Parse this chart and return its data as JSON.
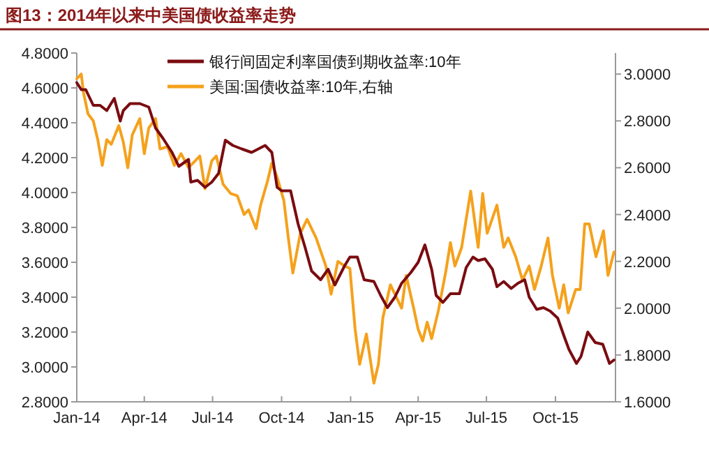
{
  "chart_data": {
    "type": "line",
    "title": "图13：2014年以来中美国债收益率走势",
    "legend": "top",
    "xlim": [
      "2014-01-01",
      "2015-12-20"
    ],
    "xticks": [
      {
        "value": "2014-01-01",
        "label": "Jan-14"
      },
      {
        "value": "2014-04-01",
        "label": "Apr-14"
      },
      {
        "value": "2014-07-01",
        "label": "Jul-14"
      },
      {
        "value": "2014-10-01",
        "label": "Oct-14"
      },
      {
        "value": "2015-01-01",
        "label": "Jan-15"
      },
      {
        "value": "2015-04-01",
        "label": "Apr-15"
      },
      {
        "value": "2015-07-01",
        "label": "Jul-15"
      },
      {
        "value": "2015-10-01",
        "label": "Oct-15"
      }
    ],
    "ylim": [
      2.8,
      4.8
    ],
    "yticks": [
      {
        "value": 2.8,
        "label": "2.8000"
      },
      {
        "value": 3.0,
        "label": "3.0000"
      },
      {
        "value": 3.2,
        "label": "3.2000"
      },
      {
        "value": 3.4,
        "label": "3.4000"
      },
      {
        "value": 3.6,
        "label": "3.6000"
      },
      {
        "value": 3.8,
        "label": "3.8000"
      },
      {
        "value": 4.0,
        "label": "4.0000"
      },
      {
        "value": 4.2,
        "label": "4.2000"
      },
      {
        "value": 4.4,
        "label": "4.4000"
      },
      {
        "value": 4.6,
        "label": "4.6000"
      },
      {
        "value": 4.8,
        "label": "4.8000"
      }
    ],
    "y2lim": [
      1.6,
      3.09
    ],
    "y2ticks": [
      {
        "value": 1.6,
        "label": "1.6000"
      },
      {
        "value": 1.8,
        "label": "1.8000"
      },
      {
        "value": 2.0,
        "label": "2.0000"
      },
      {
        "value": 2.2,
        "label": "2.2000"
      },
      {
        "value": 2.4,
        "label": "2.4000"
      },
      {
        "value": 2.6,
        "label": "2.6000"
      },
      {
        "value": 2.8,
        "label": "2.8000"
      },
      {
        "value": 3.0,
        "label": "3.0000"
      }
    ],
    "series": [
      {
        "name": "银行间固定利率国债到期收益率:10年",
        "color": "#7a0c10",
        "x": [
          "2014-01-01",
          "2014-01-07",
          "2014-01-13",
          "2014-01-23",
          "2014-02-01",
          "2014-02-10",
          "2014-02-20",
          "2014-02-28",
          "2014-03-04",
          "2014-03-13",
          "2014-03-26",
          "2014-04-07",
          "2014-04-16",
          "2014-04-26",
          "2014-05-08",
          "2014-05-17",
          "2014-05-30",
          "2014-06-02",
          "2014-06-11",
          "2014-06-21",
          "2014-06-30",
          "2014-07-09",
          "2014-07-18",
          "2014-07-28",
          "2014-08-09",
          "2014-08-22",
          "2014-08-31",
          "2014-09-09",
          "2014-09-18",
          "2014-09-25",
          "2014-10-01",
          "2014-10-13",
          "2014-10-23",
          "2014-11-01",
          "2014-11-10",
          "2014-11-22",
          "2014-12-02",
          "2014-12-11",
          "2014-12-24",
          "2014-12-31",
          "2015-01-10",
          "2015-01-19",
          "2015-02-01",
          "2015-02-10",
          "2015-02-19",
          "2015-03-01",
          "2015-03-10",
          "2015-03-22",
          "2015-04-01",
          "2015-04-10",
          "2015-04-19",
          "2015-04-25",
          "2015-05-04",
          "2015-05-14",
          "2015-05-26",
          "2015-06-04",
          "2015-06-13",
          "2015-06-20",
          "2015-06-29",
          "2015-07-09",
          "2015-07-15",
          "2015-07-24",
          "2015-08-03",
          "2015-08-12",
          "2015-08-21",
          "2015-08-27",
          "2015-09-06",
          "2015-09-15",
          "2015-09-24",
          "2015-10-04",
          "2015-10-13",
          "2015-10-19",
          "2015-10-29",
          "2015-11-04",
          "2015-11-13",
          "2015-11-23",
          "2015-12-03",
          "2015-12-12",
          "2015-12-18"
        ],
        "values": [
          4.63,
          4.59,
          4.59,
          4.5,
          4.5,
          4.47,
          4.54,
          4.41,
          4.47,
          4.51,
          4.51,
          4.49,
          4.37,
          4.31,
          4.23,
          4.15,
          4.19,
          4.06,
          4.07,
          4.03,
          4.06,
          4.11,
          4.3,
          4.27,
          4.25,
          4.23,
          4.25,
          4.27,
          4.23,
          4.03,
          4.01,
          4.01,
          3.82,
          3.69,
          3.55,
          3.5,
          3.56,
          3.47,
          3.58,
          3.63,
          3.63,
          3.5,
          3.49,
          3.41,
          3.34,
          3.4,
          3.48,
          3.54,
          3.6,
          3.7,
          3.56,
          3.41,
          3.37,
          3.42,
          3.42,
          3.57,
          3.63,
          3.61,
          3.62,
          3.56,
          3.46,
          3.49,
          3.45,
          3.48,
          3.5,
          3.4,
          3.33,
          3.34,
          3.32,
          3.28,
          3.17,
          3.1,
          3.02,
          3.06,
          3.2,
          3.14,
          3.13,
          3.02,
          3.04
        ]
      },
      {
        "name": "美国:国债收益率:10年,右轴",
        "color": "#f5a11c",
        "axis": "y2",
        "x": [
          "2014-01-01",
          "2014-01-07",
          "2014-01-10",
          "2014-01-16",
          "2014-01-23",
          "2014-01-29",
          "2014-02-04",
          "2014-02-10",
          "2014-02-16",
          "2014-02-26",
          "2014-03-04",
          "2014-03-10",
          "2014-03-16",
          "2014-03-26",
          "2014-04-01",
          "2014-04-07",
          "2014-04-16",
          "2014-04-22",
          "2014-05-02",
          "2014-05-11",
          "2014-05-20",
          "2014-05-30",
          "2014-06-08",
          "2014-06-14",
          "2014-06-21",
          "2014-06-30",
          "2014-07-06",
          "2014-07-15",
          "2014-07-25",
          "2014-08-03",
          "2014-08-12",
          "2014-08-18",
          "2014-08-28",
          "2014-09-03",
          "2014-09-12",
          "2014-09-18",
          "2014-09-25",
          "2014-10-04",
          "2014-10-10",
          "2014-10-16",
          "2014-10-26",
          "2014-11-04",
          "2014-11-16",
          "2014-11-29",
          "2014-12-06",
          "2014-12-15",
          "2014-12-24",
          "2014-12-31",
          "2015-01-07",
          "2015-01-13",
          "2015-01-22",
          "2015-02-01",
          "2015-02-07",
          "2015-02-13",
          "2015-02-23",
          "2015-03-01",
          "2015-03-10",
          "2015-03-16",
          "2015-03-26",
          "2015-04-01",
          "2015-04-07",
          "2015-04-13",
          "2015-04-19",
          "2015-04-28",
          "2015-05-08",
          "2015-05-14",
          "2015-05-20",
          "2015-05-29",
          "2015-06-10",
          "2015-06-20",
          "2015-06-26",
          "2015-07-02",
          "2015-07-15",
          "2015-07-24",
          "2015-07-30",
          "2015-08-09",
          "2015-08-18",
          "2015-08-27",
          "2015-09-03",
          "2015-09-12",
          "2015-09-21",
          "2015-09-27",
          "2015-10-06",
          "2015-10-12",
          "2015-10-18",
          "2015-10-28",
          "2015-11-03",
          "2015-11-09",
          "2015-11-15",
          "2015-11-24",
          "2015-12-04",
          "2015-12-10",
          "2015-12-18"
        ],
        "values": [
          2.98,
          3.0,
          2.92,
          2.83,
          2.8,
          2.72,
          2.61,
          2.72,
          2.7,
          2.78,
          2.71,
          2.6,
          2.74,
          2.81,
          2.66,
          2.77,
          2.81,
          2.68,
          2.69,
          2.61,
          2.66,
          2.6,
          2.63,
          2.65,
          2.51,
          2.63,
          2.65,
          2.53,
          2.49,
          2.48,
          2.4,
          2.42,
          2.34,
          2.44,
          2.54,
          2.62,
          2.56,
          2.46,
          2.3,
          2.15,
          2.32,
          2.38,
          2.3,
          2.18,
          2.06,
          2.2,
          2.18,
          2.17,
          1.91,
          1.76,
          1.89,
          1.68,
          1.76,
          1.96,
          2.1,
          2.06,
          2.0,
          2.14,
          2.0,
          1.91,
          1.86,
          1.94,
          1.87,
          1.99,
          2.16,
          2.28,
          2.18,
          2.26,
          2.5,
          2.26,
          2.49,
          2.32,
          2.44,
          2.26,
          2.3,
          2.22,
          2.12,
          2.18,
          2.08,
          2.18,
          2.3,
          2.14,
          2.0,
          2.1,
          1.98,
          2.08,
          2.08,
          2.36,
          2.36,
          2.22,
          2.33,
          2.14,
          2.24
        ]
      }
    ]
  }
}
